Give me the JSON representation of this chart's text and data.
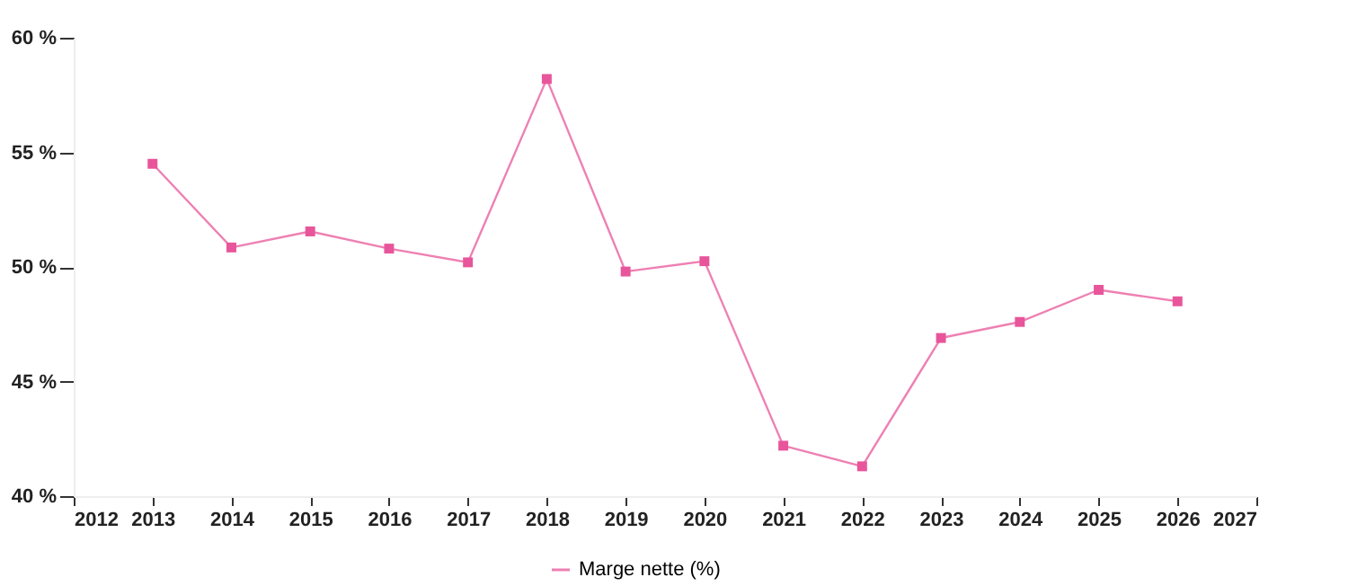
{
  "chart_data": {
    "type": "line",
    "x": [
      2013,
      2014,
      2015,
      2016,
      2017,
      2018,
      2019,
      2020,
      2021,
      2022,
      2023,
      2024,
      2025,
      2026
    ],
    "series": [
      {
        "name": "Marge nette (%)",
        "color": "#e8559a",
        "values": [
          54.5,
          50.85,
          51.55,
          50.8,
          50.2,
          58.2,
          49.8,
          50.25,
          42.2,
          41.3,
          46.9,
          47.6,
          49.0,
          48.5
        ]
      }
    ],
    "xlim": [
      2012,
      2027
    ],
    "xticks": [
      2012,
      2013,
      2014,
      2015,
      2016,
      2017,
      2018,
      2019,
      2020,
      2021,
      2022,
      2023,
      2024,
      2025,
      2026,
      2027
    ],
    "ylim": [
      40,
      60
    ],
    "yticks": [
      {
        "value": 40,
        "label": "40 %"
      },
      {
        "value": 45,
        "label": "45 %"
      },
      {
        "value": 50,
        "label": "50 %"
      },
      {
        "value": 55,
        "label": "55 %"
      },
      {
        "value": 60,
        "label": "60 %"
      }
    ],
    "marker": "square",
    "line_style": "solid",
    "grid": false,
    "legend": "bottom"
  }
}
